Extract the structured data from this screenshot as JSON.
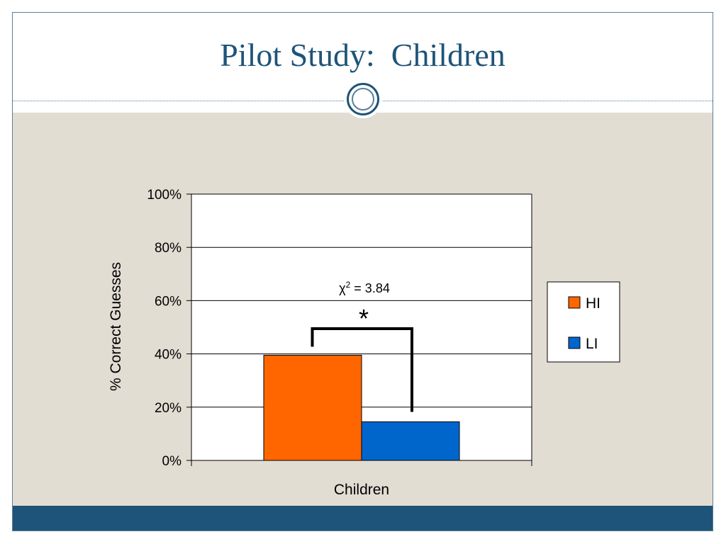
{
  "slide": {
    "title": "Pilot Study:  Children",
    "colors": {
      "title": "#1e5479",
      "panel": "#e2ddd3",
      "footer": "#1e5479"
    }
  },
  "chart_data": {
    "type": "bar",
    "categories": [
      "Children"
    ],
    "series": [
      {
        "name": "HI",
        "values": [
          39.5
        ],
        "color": "#ff6600"
      },
      {
        "name": "LI",
        "values": [
          14.5
        ],
        "color": "#0066cc"
      }
    ],
    "xlabel": "Children",
    "ylabel": "% Correct Guesses",
    "ylim": [
      0,
      100
    ],
    "yticks": [
      "0%",
      "20%",
      "40%",
      "60%",
      "80%",
      "100%"
    ],
    "grid": true,
    "legend": "right",
    "annotation": {
      "stat": "χ",
      "superscript": "2",
      "equals": "= 3.84",
      "marker": "*"
    }
  }
}
